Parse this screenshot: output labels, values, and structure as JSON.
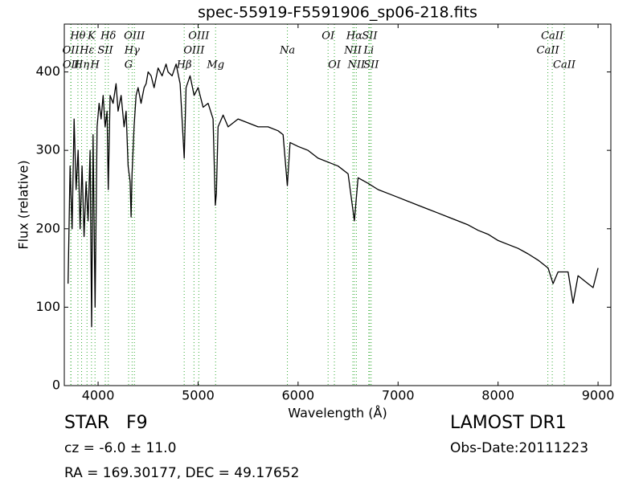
{
  "chart_data": {
    "type": "line",
    "title": "spec-55919-F5591906_sp06-218.fits",
    "x_label": "Wavelength (Å)",
    "y_label": "Flux (relative)",
    "color": "#000000",
    "line_color": "#33aa33",
    "xlim": [
      3662,
      9128
    ],
    "ylim": [
      0,
      461
    ],
    "xticks": [
      4000,
      5000,
      6000,
      7000,
      8000,
      9000
    ],
    "yticks": [
      0,
      100,
      200,
      300,
      400
    ],
    "x": [
      3700,
      3720,
      3740,
      3760,
      3780,
      3800,
      3820,
      3840,
      3860,
      3880,
      3900,
      3920,
      3935,
      3950,
      3970,
      3990,
      4010,
      4030,
      4050,
      4070,
      4090,
      4102,
      4120,
      4150,
      4180,
      4200,
      4230,
      4260,
      4280,
      4300,
      4320,
      4330,
      4340,
      4360,
      4380,
      4400,
      4430,
      4460,
      4480,
      4500,
      4530,
      4560,
      4600,
      4640,
      4680,
      4700,
      4740,
      4780,
      4820,
      4861,
      4880,
      4920,
      4960,
      5000,
      5050,
      5100,
      5150,
      5172,
      5183,
      5200,
      5250,
      5300,
      5400,
      5500,
      5600,
      5700,
      5800,
      5850,
      5893,
      5920,
      6000,
      6100,
      6200,
      6300,
      6400,
      6500,
      6563,
      6600,
      6700,
      6800,
      6900,
      7000,
      7100,
      7200,
      7300,
      7400,
      7500,
      7600,
      7700,
      7800,
      7900,
      8000,
      8100,
      8200,
      8300,
      8400,
      8500,
      8550,
      8600,
      8700,
      8750,
      8800,
      8900,
      8950,
      9000
    ],
    "values": [
      130,
      280,
      200,
      340,
      250,
      300,
      200,
      280,
      190,
      260,
      210,
      300,
      75,
      320,
      100,
      330,
      360,
      340,
      370,
      330,
      350,
      250,
      370,
      360,
      385,
      350,
      370,
      330,
      350,
      280,
      260,
      215,
      270,
      330,
      370,
      380,
      360,
      380,
      385,
      400,
      395,
      380,
      405,
      395,
      410,
      400,
      395,
      410,
      385,
      290,
      380,
      395,
      370,
      380,
      355,
      360,
      340,
      230,
      245,
      330,
      345,
      330,
      340,
      335,
      330,
      330,
      325,
      320,
      255,
      310,
      305,
      300,
      290,
      285,
      280,
      270,
      210,
      265,
      258,
      250,
      245,
      240,
      235,
      230,
      225,
      220,
      215,
      210,
      205,
      198,
      193,
      185,
      180,
      175,
      168,
      160,
      150,
      130,
      145,
      145,
      105,
      140,
      130,
      125,
      150
    ],
    "lines": [
      {
        "label": "OII",
        "wavelength": 3727
      },
      {
        "label": "OII",
        "wavelength": 3729
      },
      {
        "label": "Hθ",
        "wavelength": 3798
      },
      {
        "label": "Hη",
        "wavelength": 3835
      },
      {
        "label": "Hε",
        "wavelength": 3889
      },
      {
        "label": "K",
        "wavelength": 3934
      },
      {
        "label": "H",
        "wavelength": 3969
      },
      {
        "label": "SII",
        "wavelength": 4072
      },
      {
        "label": "Hδ",
        "wavelength": 4102
      },
      {
        "label": "G",
        "wavelength": 4305
      },
      {
        "label": "Hγ",
        "wavelength": 4340
      },
      {
        "label": "OIII",
        "wavelength": 4363
      },
      {
        "label": "Hβ",
        "wavelength": 4861
      },
      {
        "label": "OIII",
        "wavelength": 4959
      },
      {
        "label": "OIII",
        "wavelength": 5007
      },
      {
        "label": "Mg",
        "wavelength": 5175
      },
      {
        "label": "Na",
        "wavelength": 5893
      },
      {
        "label": "OI",
        "wavelength": 6300
      },
      {
        "label": "OI",
        "wavelength": 6363
      },
      {
        "label": "NII",
        "wavelength": 6548
      },
      {
        "label": "Hα",
        "wavelength": 6563
      },
      {
        "label": "NII",
        "wavelength": 6583
      },
      {
        "label": "Li",
        "wavelength": 6707
      },
      {
        "label": "SII",
        "wavelength": 6716
      },
      {
        "label": "SII",
        "wavelength": 6731
      },
      {
        "label": "CaII",
        "wavelength": 8498
      },
      {
        "label": "CaII",
        "wavelength": 8542
      },
      {
        "label": "CaII",
        "wavelength": 8662
      }
    ],
    "object_class": "STAR   F9",
    "redshift": "cz = -6.0 ± 11.0",
    "coordinates": "RA = 169.30177, DEC = 49.17652",
    "survey": "LAMOST DR1",
    "obs_date": "Obs-Date:20111223"
  }
}
